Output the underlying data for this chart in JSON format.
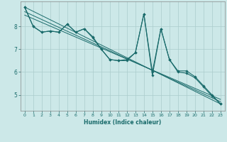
{
  "xlabel": "Humidex (Indice chaleur)",
  "bg_color": "#cce8e8",
  "grid_color": "#aacccc",
  "line_color": "#1a6b6b",
  "xlim": [
    -0.5,
    23.5
  ],
  "ylim": [
    4.3,
    9.1
  ],
  "yticks": [
    5,
    6,
    7,
    8
  ],
  "xticks": [
    0,
    1,
    2,
    3,
    4,
    5,
    6,
    7,
    8,
    9,
    10,
    11,
    12,
    13,
    14,
    15,
    16,
    17,
    18,
    19,
    20,
    21,
    22,
    23
  ],
  "series1": [
    [
      0,
      8.85
    ],
    [
      1,
      8.0
    ],
    [
      2,
      7.75
    ],
    [
      3,
      7.8
    ],
    [
      4,
      7.75
    ],
    [
      5,
      8.1
    ],
    [
      6,
      7.75
    ],
    [
      7,
      7.9
    ],
    [
      8,
      7.55
    ],
    [
      9,
      7.0
    ],
    [
      10,
      6.55
    ],
    [
      11,
      6.5
    ],
    [
      12,
      6.55
    ],
    [
      13,
      6.85
    ],
    [
      14,
      8.55
    ],
    [
      15,
      5.85
    ],
    [
      16,
      7.9
    ],
    [
      17,
      6.55
    ],
    [
      18,
      6.05
    ],
    [
      19,
      6.05
    ],
    [
      20,
      5.8
    ],
    [
      21,
      5.4
    ],
    [
      22,
      5.0
    ],
    [
      23,
      4.6
    ]
  ],
  "series2": [
    [
      0,
      8.85
    ],
    [
      1,
      8.0
    ],
    [
      2,
      7.75
    ],
    [
      3,
      7.8
    ],
    [
      4,
      7.75
    ],
    [
      5,
      8.1
    ],
    [
      6,
      7.75
    ],
    [
      7,
      7.9
    ],
    [
      8,
      7.5
    ],
    [
      9,
      7.0
    ],
    [
      10,
      6.55
    ],
    [
      11,
      6.5
    ],
    [
      12,
      6.5
    ],
    [
      13,
      6.85
    ],
    [
      14,
      8.55
    ],
    [
      15,
      6.0
    ],
    [
      16,
      7.9
    ],
    [
      17,
      6.55
    ],
    [
      18,
      6.0
    ],
    [
      19,
      5.95
    ],
    [
      20,
      5.75
    ],
    [
      21,
      5.35
    ],
    [
      22,
      4.95
    ],
    [
      23,
      4.6
    ]
  ],
  "trend_lines": [
    [
      [
        0,
        8.85
      ],
      [
        23,
        4.6
      ]
    ],
    [
      [
        0,
        8.65
      ],
      [
        23,
        4.7
      ]
    ],
    [
      [
        0,
        8.5
      ],
      [
        23,
        4.8
      ]
    ]
  ]
}
